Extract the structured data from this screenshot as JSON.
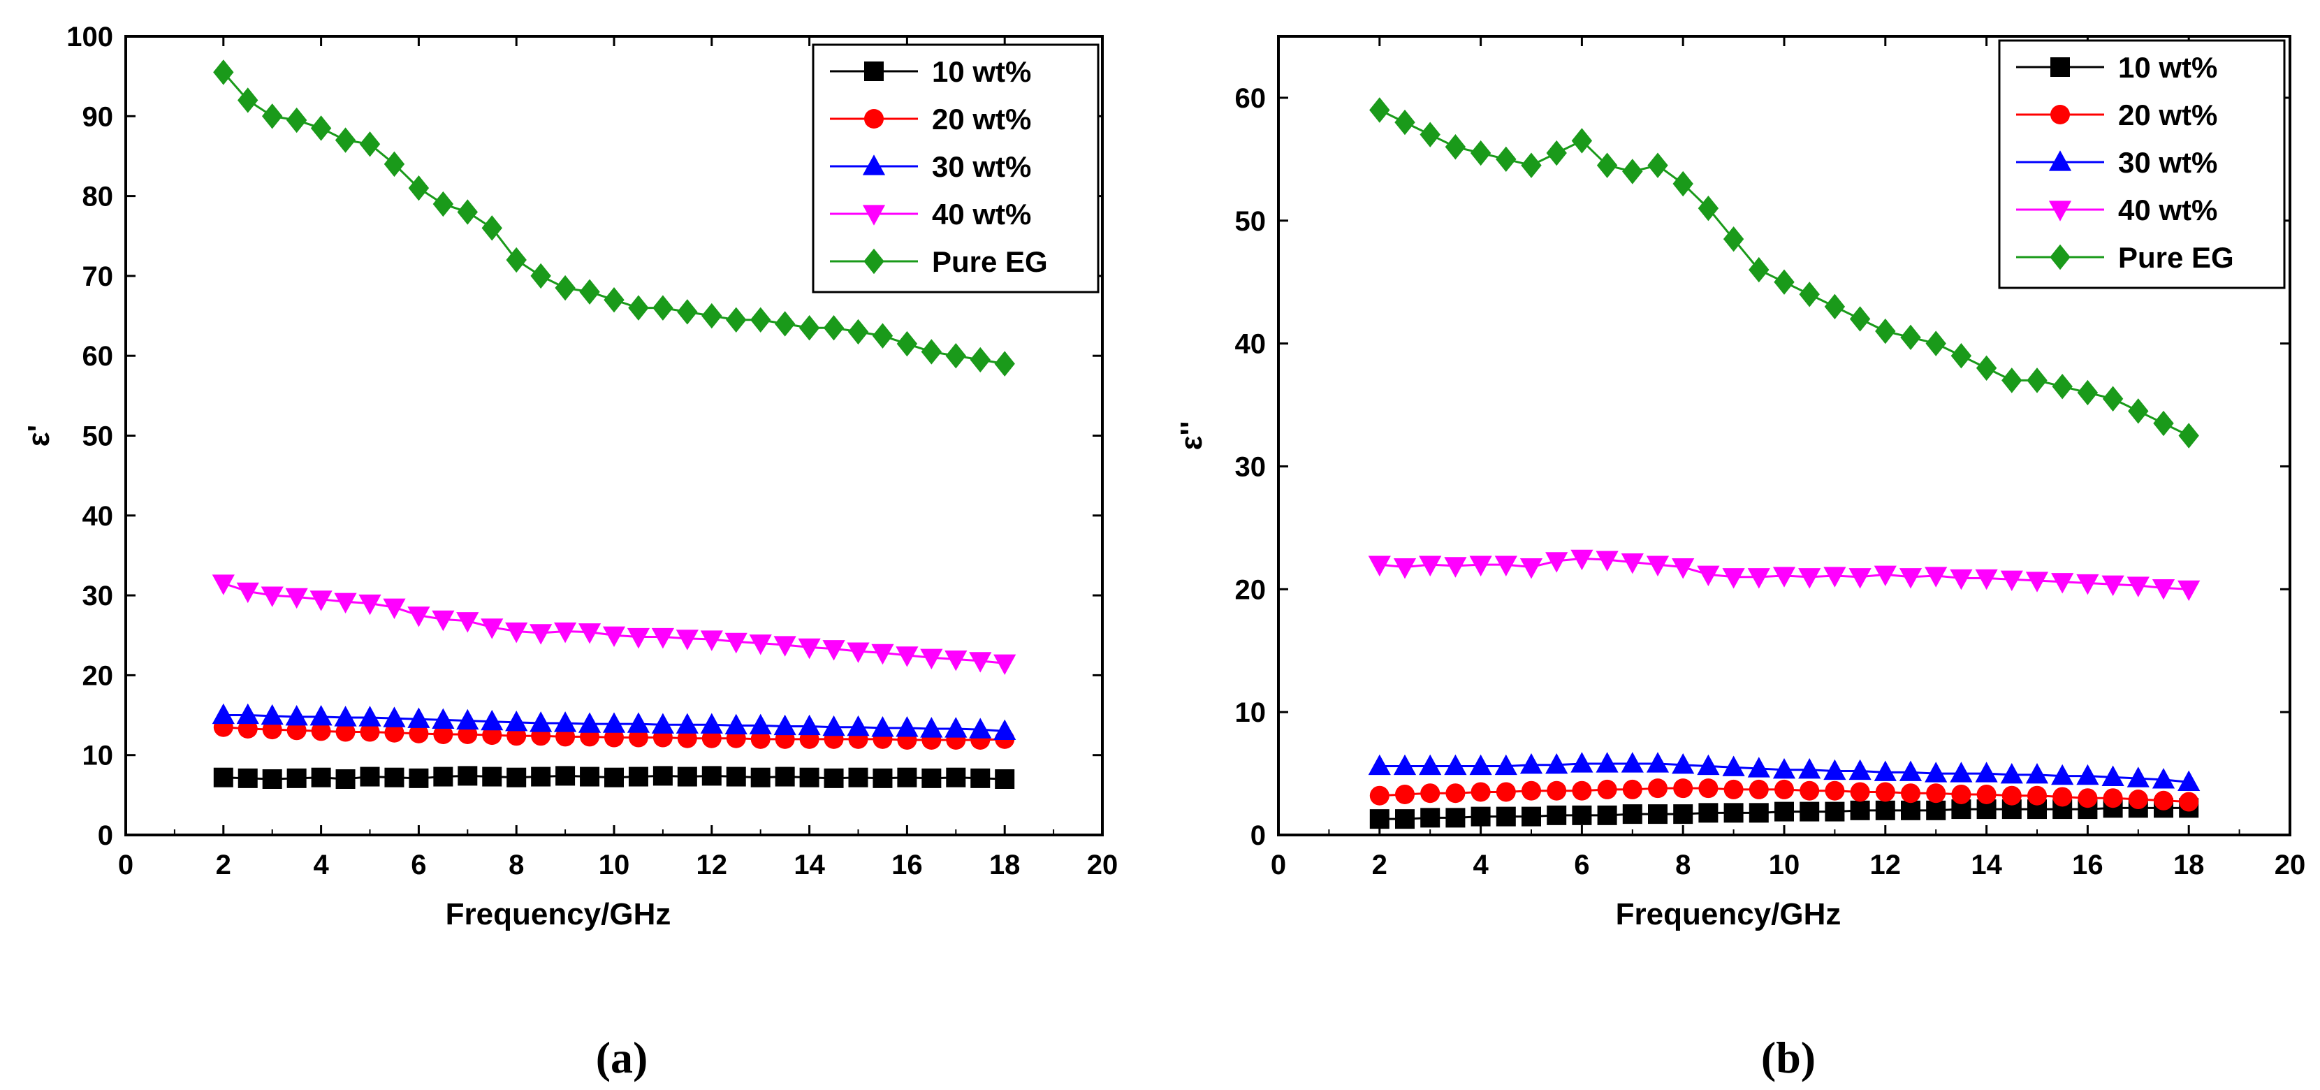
{
  "figure": {
    "panels": [
      {
        "id": "a",
        "caption": "(a)"
      },
      {
        "id": "b",
        "caption": "(b)"
      }
    ]
  },
  "chart_data": [
    {
      "type": "line",
      "panel": "(a)",
      "title": "",
      "xlabel": "Frequency/GHz",
      "ylabel": "ε'",
      "xlim": [
        0,
        20
      ],
      "ylim": [
        0,
        100
      ],
      "xticks": [
        0,
        2,
        4,
        6,
        8,
        10,
        12,
        14,
        16,
        18,
        20
      ],
      "yticks": [
        0,
        10,
        20,
        30,
        40,
        50,
        60,
        70,
        80,
        90,
        100
      ],
      "legend_position": "top-right",
      "x": [
        2,
        2.5,
        3,
        3.5,
        4,
        4.5,
        5,
        5.5,
        6,
        6.5,
        7,
        7.5,
        8,
        8.5,
        9,
        9.5,
        10,
        10.5,
        11,
        11.5,
        12,
        12.5,
        13,
        13.5,
        14,
        14.5,
        15,
        15.5,
        16,
        16.5,
        17,
        17.5,
        18
      ],
      "series": [
        {
          "name": "10 wt%",
          "color": "#000000",
          "marker": "square",
          "values": [
            7.2,
            7.1,
            7.0,
            7.1,
            7.2,
            7.0,
            7.3,
            7.2,
            7.1,
            7.3,
            7.4,
            7.3,
            7.2,
            7.3,
            7.4,
            7.3,
            7.2,
            7.3,
            7.4,
            7.3,
            7.4,
            7.3,
            7.2,
            7.3,
            7.2,
            7.1,
            7.2,
            7.1,
            7.2,
            7.1,
            7.2,
            7.1,
            7.0
          ]
        },
        {
          "name": "20 wt%",
          "color": "#ff0000",
          "marker": "circle",
          "values": [
            13.5,
            13.3,
            13.2,
            13.1,
            13.0,
            12.9,
            12.9,
            12.8,
            12.7,
            12.6,
            12.6,
            12.5,
            12.4,
            12.4,
            12.3,
            12.3,
            12.2,
            12.2,
            12.2,
            12.1,
            12.1,
            12.1,
            12.0,
            12.0,
            12.0,
            12.0,
            12.0,
            12.0,
            11.9,
            11.9,
            11.9,
            11.9,
            12.0
          ]
        },
        {
          "name": "30 wt%",
          "color": "#0000ff",
          "marker": "triangle-up",
          "values": [
            15.0,
            15.0,
            14.9,
            14.8,
            14.8,
            14.7,
            14.7,
            14.6,
            14.5,
            14.4,
            14.3,
            14.2,
            14.1,
            14.0,
            14.0,
            13.9,
            13.9,
            13.9,
            13.8,
            13.8,
            13.8,
            13.7,
            13.7,
            13.6,
            13.6,
            13.5,
            13.5,
            13.4,
            13.4,
            13.3,
            13.3,
            13.2,
            13.0
          ]
        },
        {
          "name": "40 wt%",
          "color": "#ff00ff",
          "marker": "triangle-down",
          "values": [
            31.5,
            30.5,
            30.0,
            29.8,
            29.5,
            29.2,
            29.0,
            28.5,
            27.5,
            27.0,
            26.8,
            26.0,
            25.5,
            25.3,
            25.5,
            25.4,
            25.0,
            24.8,
            24.8,
            24.6,
            24.5,
            24.2,
            24.0,
            23.8,
            23.5,
            23.3,
            23.0,
            22.8,
            22.5,
            22.2,
            22.0,
            21.8,
            21.5
          ]
        },
        {
          "name": "Pure EG",
          "color": "#1a9a1a",
          "marker": "diamond",
          "values": [
            95.5,
            92.0,
            90.0,
            89.5,
            88.5,
            87.0,
            86.5,
            84.0,
            81.0,
            79.0,
            78.0,
            76.0,
            72.0,
            70.0,
            68.5,
            68.0,
            67.0,
            66.0,
            66.0,
            65.5,
            65.0,
            64.5,
            64.5,
            64.0,
            63.5,
            63.5,
            63.0,
            62.5,
            61.5,
            60.5,
            60.0,
            59.5,
            59.0
          ]
        }
      ]
    },
    {
      "type": "line",
      "panel": "(b)",
      "title": "",
      "xlabel": "Frequency/GHz",
      "ylabel": "ε''",
      "xlim": [
        0,
        20
      ],
      "ylim": [
        0,
        65
      ],
      "xticks": [
        0,
        2,
        4,
        6,
        8,
        10,
        12,
        14,
        16,
        18,
        20
      ],
      "yticks": [
        0,
        10,
        20,
        30,
        40,
        50,
        60
      ],
      "legend_position": "top-right",
      "x": [
        2,
        2.5,
        3,
        3.5,
        4,
        4.5,
        5,
        5.5,
        6,
        6.5,
        7,
        7.5,
        8,
        8.5,
        9,
        9.5,
        10,
        10.5,
        11,
        11.5,
        12,
        12.5,
        13,
        13.5,
        14,
        14.5,
        15,
        15.5,
        16,
        16.5,
        17,
        17.5,
        18
      ],
      "series": [
        {
          "name": "10 wt%",
          "color": "#000000",
          "marker": "square",
          "values": [
            1.3,
            1.3,
            1.4,
            1.4,
            1.5,
            1.5,
            1.5,
            1.6,
            1.6,
            1.6,
            1.7,
            1.7,
            1.7,
            1.8,
            1.8,
            1.8,
            1.9,
            1.9,
            1.9,
            2.0,
            2.0,
            2.0,
            2.0,
            2.1,
            2.1,
            2.1,
            2.1,
            2.1,
            2.1,
            2.2,
            2.2,
            2.2,
            2.2
          ]
        },
        {
          "name": "20 wt%",
          "color": "#ff0000",
          "marker": "circle",
          "values": [
            3.2,
            3.3,
            3.4,
            3.4,
            3.5,
            3.5,
            3.6,
            3.6,
            3.6,
            3.7,
            3.7,
            3.8,
            3.8,
            3.8,
            3.7,
            3.7,
            3.7,
            3.6,
            3.6,
            3.5,
            3.5,
            3.4,
            3.4,
            3.3,
            3.3,
            3.2,
            3.2,
            3.1,
            3.0,
            3.0,
            2.9,
            2.8,
            2.7
          ]
        },
        {
          "name": "30 wt%",
          "color": "#0000ff",
          "marker": "triangle-up",
          "values": [
            5.6,
            5.6,
            5.6,
            5.6,
            5.6,
            5.6,
            5.7,
            5.7,
            5.8,
            5.8,
            5.8,
            5.8,
            5.7,
            5.6,
            5.5,
            5.4,
            5.3,
            5.3,
            5.2,
            5.2,
            5.1,
            5.1,
            5.0,
            5.0,
            5.0,
            4.9,
            4.9,
            4.8,
            4.8,
            4.7,
            4.6,
            4.5,
            4.3
          ]
        },
        {
          "name": "40 wt%",
          "color": "#ff00ff",
          "marker": "triangle-down",
          "values": [
            22.0,
            21.8,
            22.0,
            21.9,
            22.0,
            22.0,
            21.8,
            22.3,
            22.5,
            22.4,
            22.2,
            22.0,
            21.8,
            21.2,
            21.0,
            21.0,
            21.1,
            21.0,
            21.1,
            21.0,
            21.2,
            21.0,
            21.1,
            20.9,
            20.9,
            20.8,
            20.7,
            20.6,
            20.5,
            20.4,
            20.3,
            20.1,
            20.0
          ]
        },
        {
          "name": "Pure EG",
          "color": "#1a9a1a",
          "marker": "diamond",
          "values": [
            59.0,
            58.0,
            57.0,
            56.0,
            55.5,
            55.0,
            54.5,
            55.5,
            56.5,
            54.5,
            54.0,
            54.5,
            53.0,
            51.0,
            48.5,
            46.0,
            45.0,
            44.0,
            43.0,
            42.0,
            41.0,
            40.5,
            40.0,
            39.0,
            38.0,
            37.0,
            37.0,
            36.5,
            36.0,
            35.5,
            34.5,
            33.5,
            32.5
          ]
        }
      ]
    }
  ]
}
